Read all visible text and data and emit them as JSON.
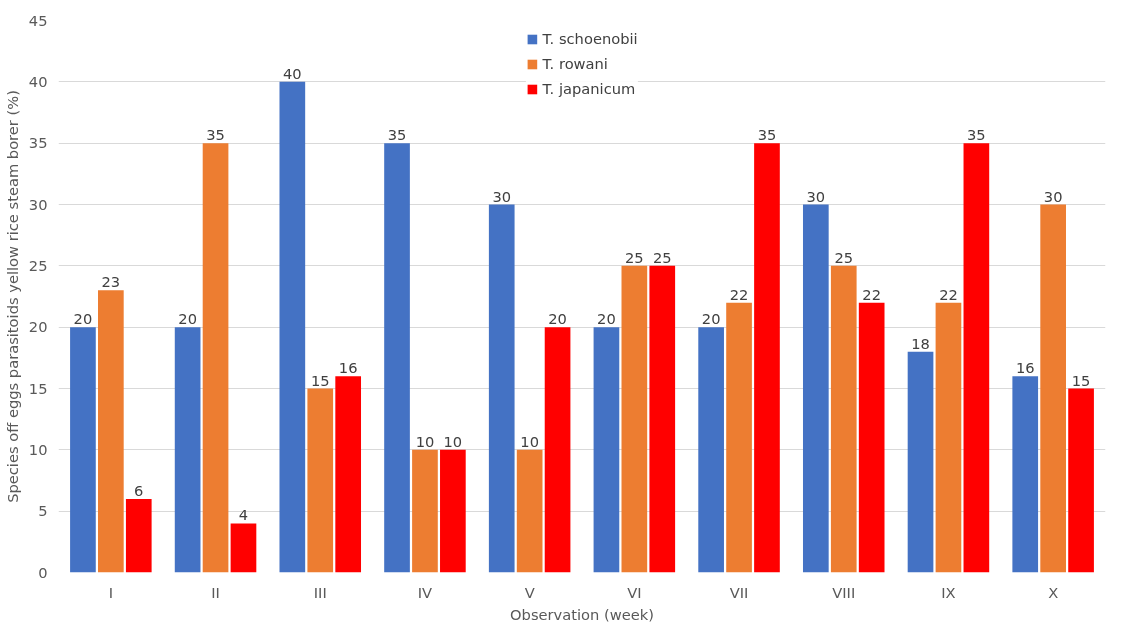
{
  "chart_data": {
    "type": "bar",
    "xlabel": "Observation (week)",
    "ylabel": "Species off eggs parasitoids yellow rice steam borer (%)",
    "categories": [
      "I",
      "II",
      "III",
      "IV",
      "V",
      "VI",
      "VII",
      "VIII",
      "IX",
      "X"
    ],
    "series": [
      {
        "name": "T. schoenobii",
        "color": "#4472c4",
        "values": [
          20,
          20,
          40,
          35,
          30,
          20,
          20,
          30,
          18,
          16
        ]
      },
      {
        "name": "T. rowani",
        "color": "#ed7d31",
        "values": [
          23,
          35,
          15,
          10,
          10,
          25,
          22,
          25,
          22,
          30
        ]
      },
      {
        "name": "T. japanicum",
        "color": "#ff0000",
        "values": [
          6,
          4,
          16,
          10,
          20,
          25,
          35,
          22,
          35,
          15
        ]
      }
    ],
    "ylim": [
      0,
      45
    ],
    "yticks": [
      0,
      5,
      10,
      15,
      20,
      25,
      30,
      35,
      40,
      45
    ],
    "grid": "y",
    "legend": "top",
    "data_labels": true
  }
}
